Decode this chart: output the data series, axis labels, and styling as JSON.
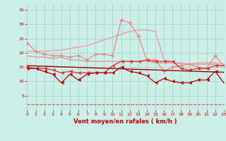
{
  "x": [
    0,
    1,
    2,
    3,
    4,
    5,
    6,
    7,
    8,
    9,
    10,
    11,
    12,
    13,
    14,
    15,
    16,
    17,
    18,
    19,
    20,
    21,
    22,
    23
  ],
  "series": [
    {
      "name": "light_pink_diagonal_no_marker",
      "color": "#f0a0a0",
      "linewidth": 1.0,
      "linestyle": "-",
      "marker": null,
      "values": [
        20.5,
        20.5,
        20.5,
        20.8,
        21.0,
        21.5,
        22.0,
        22.5,
        23.5,
        24.5,
        25.5,
        26.5,
        27.5,
        28.0,
        28.0,
        27.5,
        17.5,
        16.5,
        16.0,
        16.0,
        16.5,
        16.5,
        16.5,
        16.0
      ]
    },
    {
      "name": "pink_with_plus_markers",
      "color": "#f08080",
      "linewidth": 0.8,
      "linestyle": "-",
      "marker": "+",
      "markersize": 4,
      "values": [
        23.5,
        20.5,
        19.5,
        19.0,
        19.0,
        18.5,
        19.0,
        17.5,
        19.5,
        19.5,
        19.0,
        31.5,
        30.5,
        26.0,
        17.5,
        17.5,
        13.5,
        15.0,
        15.5,
        16.0,
        15.0,
        14.5,
        19.0,
        15.5
      ]
    },
    {
      "name": "medium_pink_flat",
      "color": "#e89090",
      "linewidth": 0.9,
      "linestyle": "-",
      "marker": null,
      "values": [
        19.0,
        18.5,
        18.5,
        18.0,
        18.5,
        17.5,
        17.5,
        17.0,
        17.0,
        17.0,
        17.0,
        17.0,
        17.0,
        17.0,
        17.0,
        16.5,
        16.5,
        16.5,
        16.5,
        16.0,
        16.0,
        16.0,
        16.0,
        15.5
      ]
    },
    {
      "name": "red_right_arrow_markers",
      "color": "#e03030",
      "linewidth": 0.9,
      "linestyle": "-",
      "marker": 4,
      "markersize": 3,
      "values": [
        15.0,
        14.5,
        14.5,
        14.0,
        13.0,
        13.5,
        13.0,
        13.0,
        13.0,
        13.0,
        15.5,
        17.0,
        17.0,
        17.0,
        17.5,
        17.0,
        17.0,
        17.0,
        14.5,
        14.0,
        14.5,
        14.5,
        15.5,
        15.5
      ]
    },
    {
      "name": "dark_red_right_arrow",
      "color": "#bb0000",
      "linewidth": 0.9,
      "linestyle": "-",
      "marker": 4,
      "markersize": 3,
      "values": [
        14.5,
        14.5,
        13.5,
        12.5,
        9.5,
        12.5,
        10.5,
        12.5,
        13.0,
        13.0,
        13.0,
        15.0,
        13.5,
        13.0,
        12.0,
        9.5,
        11.0,
        10.0,
        9.5,
        9.5,
        10.5,
        10.5,
        13.5,
        9.5
      ]
    },
    {
      "name": "dark_red_flat_line",
      "color": "#990000",
      "linewidth": 1.0,
      "linestyle": "-",
      "marker": null,
      "values": [
        15.5,
        15.4,
        15.3,
        15.2,
        15.1,
        15.0,
        14.9,
        14.8,
        14.7,
        14.6,
        14.5,
        14.4,
        14.3,
        14.2,
        14.1,
        14.0,
        13.9,
        13.8,
        13.7,
        13.6,
        13.5,
        13.4,
        13.3,
        13.2
      ]
    },
    {
      "name": "dashed_bottom",
      "color": "#e05050",
      "linewidth": 0.8,
      "linestyle": "--",
      "marker": null,
      "values": [
        2.0,
        2.0,
        2.0,
        2.0,
        2.0,
        2.0,
        2.0,
        2.0,
        2.0,
        2.0,
        2.0,
        2.0,
        2.0,
        2.0,
        2.0,
        2.0,
        2.0,
        2.0,
        2.0,
        2.0,
        2.0,
        2.0,
        2.0,
        2.0
      ]
    }
  ],
  "xlabel": "Vent moyen/en rafales ( km/h )",
  "xlim": [
    0,
    23
  ],
  "ylim": [
    0,
    37
  ],
  "yticks": [
    5,
    10,
    15,
    20,
    25,
    30,
    35
  ],
  "xticks": [
    0,
    1,
    2,
    3,
    4,
    5,
    6,
    7,
    8,
    9,
    10,
    11,
    12,
    13,
    14,
    15,
    16,
    17,
    18,
    19,
    20,
    21,
    22,
    23
  ],
  "background_color": "#cceee8",
  "grid_color": "#aad4cc",
  "tick_color": "#cc0000",
  "label_color": "#cc0000"
}
